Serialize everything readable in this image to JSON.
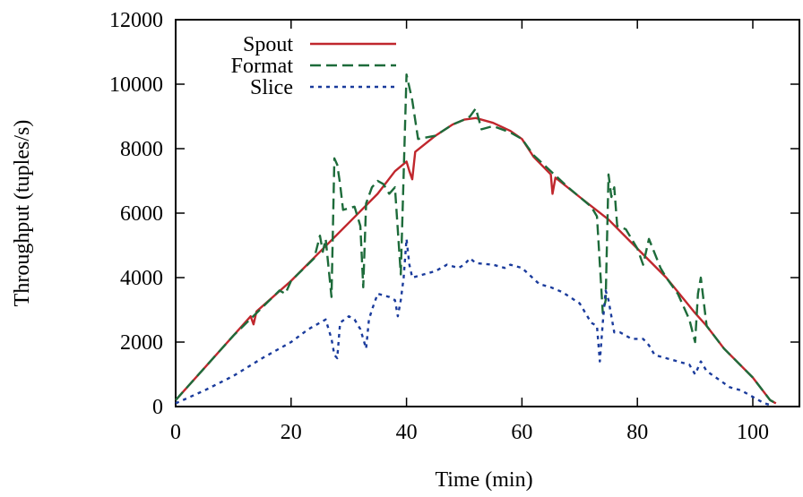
{
  "chart_data": {
    "type": "line",
    "title": "",
    "xlabel": "Time (min)",
    "ylabel": "Throughput (tuples/s)",
    "xlim": [
      0,
      105
    ],
    "ylim": [
      0,
      12000
    ],
    "x_ticks": [
      0,
      20,
      40,
      60,
      80,
      100
    ],
    "y_ticks": [
      0,
      2000,
      4000,
      6000,
      8000,
      10000,
      12000
    ],
    "grid": false,
    "legend_position": "top-left",
    "series": [
      {
        "name": "Spout",
        "color": "#c0272d",
        "dash": "solid",
        "points": [
          [
            0,
            200
          ],
          [
            5,
            1200
          ],
          [
            10,
            2200
          ],
          [
            13,
            2800
          ],
          [
            13.5,
            2550
          ],
          [
            14,
            2950
          ],
          [
            20,
            3900
          ],
          [
            25,
            4800
          ],
          [
            30,
            5700
          ],
          [
            35,
            6600
          ],
          [
            38,
            7300
          ],
          [
            40,
            7600
          ],
          [
            40.5,
            7300
          ],
          [
            41,
            7050
          ],
          [
            41.5,
            7900
          ],
          [
            45,
            8400
          ],
          [
            48,
            8750
          ],
          [
            50,
            8900
          ],
          [
            52,
            8950
          ],
          [
            55,
            8800
          ],
          [
            58,
            8550
          ],
          [
            60,
            8300
          ],
          [
            62,
            7750
          ],
          [
            65,
            7200
          ],
          [
            65.3,
            6600
          ],
          [
            65.8,
            7100
          ],
          [
            70,
            6500
          ],
          [
            75,
            5800
          ],
          [
            80,
            4900
          ],
          [
            85,
            4000
          ],
          [
            90,
            2900
          ],
          [
            92,
            2500
          ],
          [
            95,
            1800
          ],
          [
            100,
            900
          ],
          [
            103,
            200
          ],
          [
            104,
            100
          ]
        ]
      },
      {
        "name": "Format",
        "color": "#1d6b3a",
        "dash": "dashed",
        "points": [
          [
            0,
            200
          ],
          [
            5,
            1200
          ],
          [
            10,
            2200
          ],
          [
            14,
            2900
          ],
          [
            18,
            3600
          ],
          [
            19,
            3500
          ],
          [
            20,
            3900
          ],
          [
            24,
            4600
          ],
          [
            25,
            5300
          ],
          [
            25.5,
            4800
          ],
          [
            26,
            5200
          ],
          [
            27,
            3400
          ],
          [
            27.5,
            7700
          ],
          [
            28,
            7500
          ],
          [
            28.5,
            6900
          ],
          [
            29,
            6100
          ],
          [
            31,
            6200
          ],
          [
            32,
            5600
          ],
          [
            32.5,
            3700
          ],
          [
            33,
            6300
          ],
          [
            34,
            6800
          ],
          [
            35,
            7000
          ],
          [
            36,
            6900
          ],
          [
            37,
            6600
          ],
          [
            38,
            6800
          ],
          [
            39,
            4100
          ],
          [
            39.5,
            7200
          ],
          [
            40,
            10300
          ],
          [
            41,
            9500
          ],
          [
            42,
            8300
          ],
          [
            45,
            8400
          ],
          [
            48,
            8750
          ],
          [
            50,
            8900
          ],
          [
            51,
            9000
          ],
          [
            52,
            9250
          ],
          [
            53,
            8600
          ],
          [
            55,
            8700
          ],
          [
            58,
            8500
          ],
          [
            60,
            8300
          ],
          [
            62,
            7800
          ],
          [
            65,
            7300
          ],
          [
            68,
            6800
          ],
          [
            70,
            6500
          ],
          [
            72,
            6200
          ],
          [
            73,
            5900
          ],
          [
            74,
            2900
          ],
          [
            74.5,
            3300
          ],
          [
            75,
            7200
          ],
          [
            75.5,
            6500
          ],
          [
            76,
            6800
          ],
          [
            76.5,
            5600
          ],
          [
            78,
            5500
          ],
          [
            80,
            4900
          ],
          [
            81,
            4400
          ],
          [
            82,
            5200
          ],
          [
            84,
            4300
          ],
          [
            85,
            4000
          ],
          [
            87,
            3500
          ],
          [
            89,
            2700
          ],
          [
            90,
            2000
          ],
          [
            90.5,
            3500
          ],
          [
            91,
            4000
          ],
          [
            92,
            2500
          ],
          [
            95,
            1800
          ],
          [
            100,
            900
          ],
          [
            103,
            200
          ],
          [
            104,
            100
          ]
        ]
      },
      {
        "name": "Slice",
        "color": "#1a3b9c",
        "dash": "dotted",
        "points": [
          [
            0,
            100
          ],
          [
            5,
            500
          ],
          [
            10,
            950
          ],
          [
            15,
            1500
          ],
          [
            20,
            2000
          ],
          [
            23,
            2400
          ],
          [
            25,
            2600
          ],
          [
            26,
            2700
          ],
          [
            27,
            2100
          ],
          [
            27.5,
            1600
          ],
          [
            28,
            1500
          ],
          [
            28.5,
            2600
          ],
          [
            30,
            2800
          ],
          [
            31,
            2700
          ],
          [
            32,
            2400
          ],
          [
            33,
            1800
          ],
          [
            33.5,
            2700
          ],
          [
            34,
            3000
          ],
          [
            35,
            3500
          ],
          [
            37,
            3400
          ],
          [
            38,
            3300
          ],
          [
            38.5,
            2800
          ],
          [
            39,
            3300
          ],
          [
            39.5,
            4000
          ],
          [
            40,
            5200
          ],
          [
            40.5,
            4400
          ],
          [
            41,
            4000
          ],
          [
            43,
            4100
          ],
          [
            45,
            4200
          ],
          [
            47,
            4400
          ],
          [
            49,
            4300
          ],
          [
            50,
            4400
          ],
          [
            51,
            4600
          ],
          [
            52,
            4450
          ],
          [
            55,
            4400
          ],
          [
            57,
            4300
          ],
          [
            58,
            4400
          ],
          [
            60,
            4300
          ],
          [
            63,
            3800
          ],
          [
            65,
            3700
          ],
          [
            67,
            3550
          ],
          [
            70,
            3200
          ],
          [
            72,
            2600
          ],
          [
            73,
            2500
          ],
          [
            73.5,
            1400
          ],
          [
            74,
            2600
          ],
          [
            74.5,
            3600
          ],
          [
            75,
            3300
          ],
          [
            76,
            2300
          ],
          [
            77,
            2300
          ],
          [
            79,
            2100
          ],
          [
            81,
            2100
          ],
          [
            82,
            1900
          ],
          [
            83,
            1600
          ],
          [
            85,
            1500
          ],
          [
            87,
            1400
          ],
          [
            89,
            1300
          ],
          [
            90,
            1000
          ],
          [
            91,
            1400
          ],
          [
            92,
            1100
          ],
          [
            94,
            850
          ],
          [
            96,
            600
          ],
          [
            98,
            500
          ],
          [
            100,
            300
          ],
          [
            101,
            200
          ],
          [
            102,
            100
          ],
          [
            103,
            50
          ]
        ]
      }
    ]
  }
}
